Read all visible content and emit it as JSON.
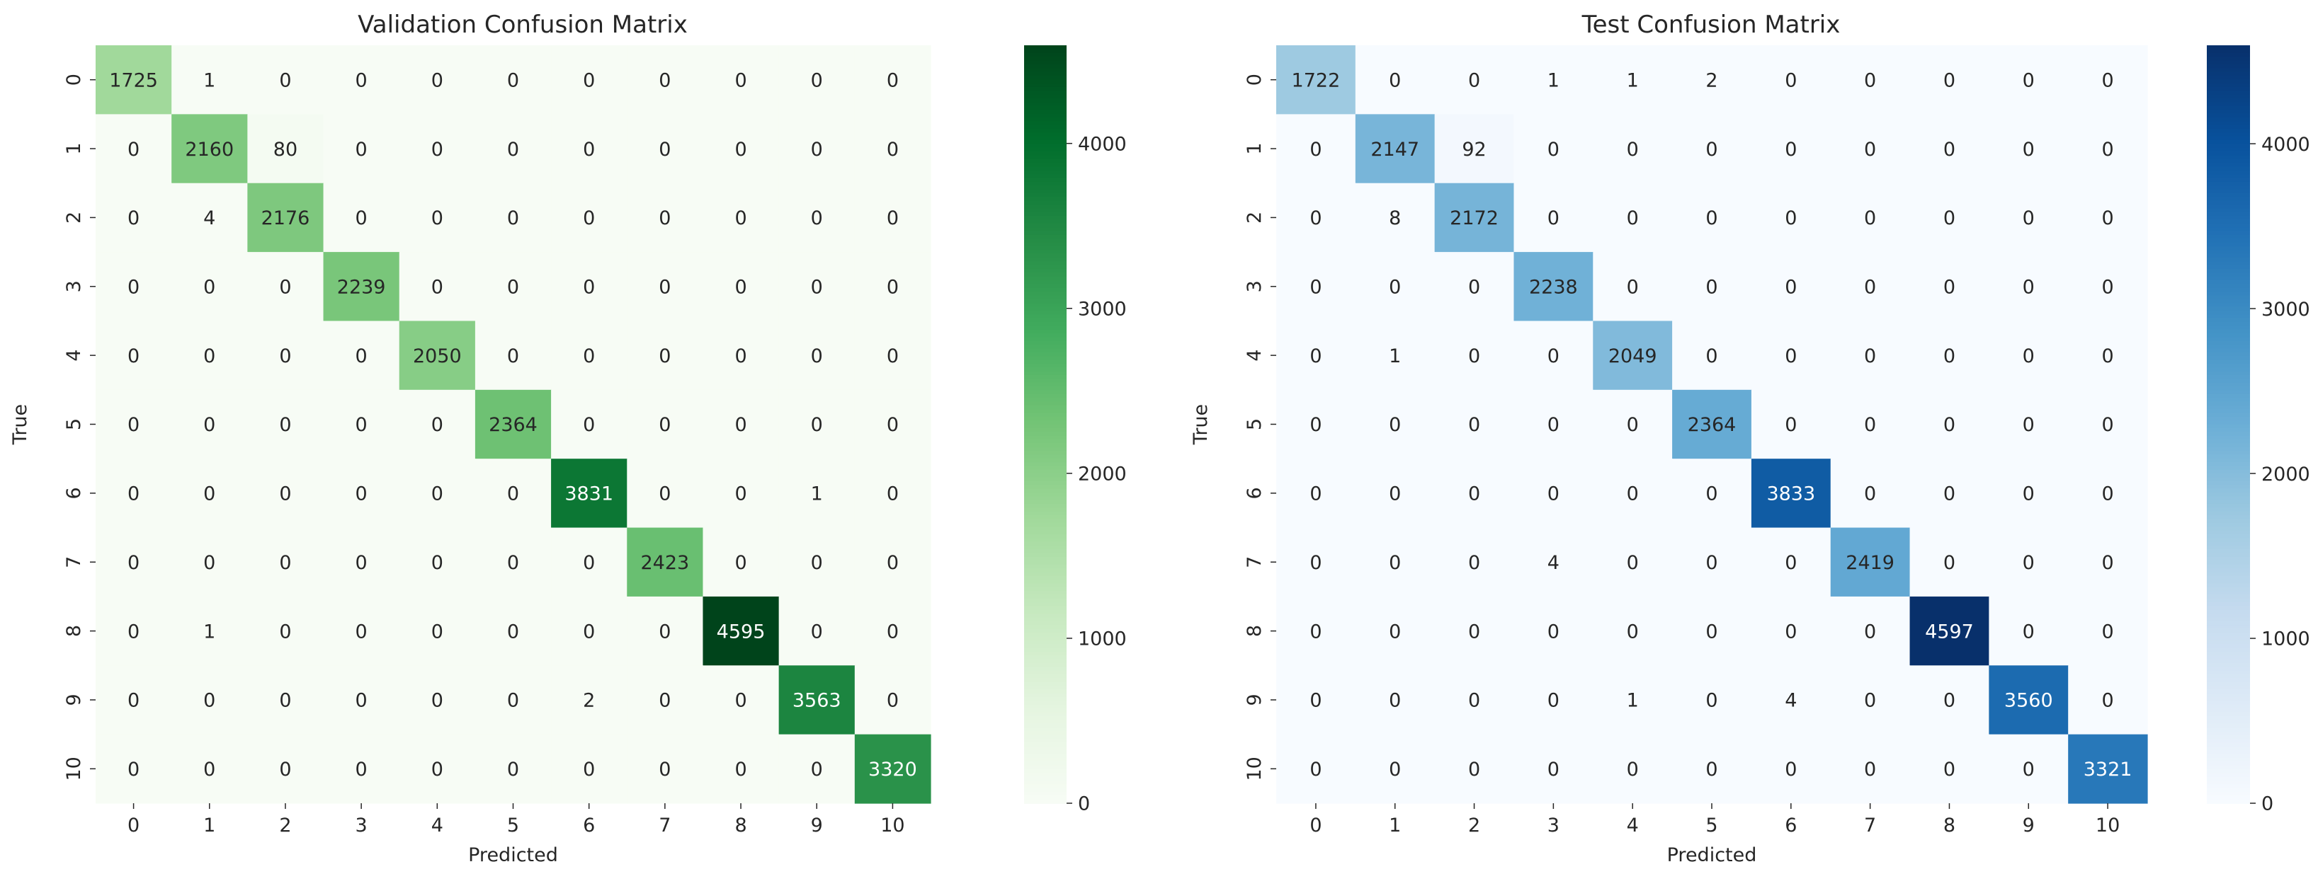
{
  "chart_data": [
    {
      "type": "heatmap",
      "title": "Validation Confusion Matrix",
      "xlabel": "Predicted",
      "ylabel": "True",
      "x_categories": [
        "0",
        "1",
        "2",
        "3",
        "4",
        "5",
        "6",
        "7",
        "8",
        "9",
        "10"
      ],
      "y_categories": [
        "0",
        "1",
        "2",
        "3",
        "4",
        "5",
        "6",
        "7",
        "8",
        "9",
        "10"
      ],
      "values": [
        [
          1725,
          1,
          0,
          0,
          0,
          0,
          0,
          0,
          0,
          0,
          0
        ],
        [
          0,
          2160,
          80,
          0,
          0,
          0,
          0,
          0,
          0,
          0,
          0
        ],
        [
          0,
          4,
          2176,
          0,
          0,
          0,
          0,
          0,
          0,
          0,
          0
        ],
        [
          0,
          0,
          0,
          2239,
          0,
          0,
          0,
          0,
          0,
          0,
          0
        ],
        [
          0,
          0,
          0,
          0,
          2050,
          0,
          0,
          0,
          0,
          0,
          0
        ],
        [
          0,
          0,
          0,
          0,
          0,
          2364,
          0,
          0,
          0,
          0,
          0
        ],
        [
          0,
          0,
          0,
          0,
          0,
          0,
          3831,
          0,
          0,
          1,
          0
        ],
        [
          0,
          0,
          0,
          0,
          0,
          0,
          0,
          2423,
          0,
          0,
          0
        ],
        [
          0,
          1,
          0,
          0,
          0,
          0,
          0,
          0,
          4595,
          0,
          0
        ],
        [
          0,
          0,
          0,
          0,
          0,
          0,
          2,
          0,
          0,
          3563,
          0
        ],
        [
          0,
          0,
          0,
          0,
          0,
          0,
          0,
          0,
          0,
          0,
          3320
        ]
      ],
      "colormap": "Greens",
      "colormap_stops": [
        "#f7fcf5",
        "#e5f5e0",
        "#c7e9c0",
        "#a1d99b",
        "#74c476",
        "#41ab5d",
        "#238b45",
        "#006d2c",
        "#00441b"
      ],
      "zlim": [
        0,
        4595
      ],
      "colorbar_ticks": [
        0,
        1000,
        2000,
        3000,
        4000
      ],
      "colorbar_tick_labels": [
        "0",
        "1000",
        "2000",
        "3000",
        "4000"
      ]
    },
    {
      "type": "heatmap",
      "title": "Test Confusion Matrix",
      "xlabel": "Predicted",
      "ylabel": "True",
      "x_categories": [
        "0",
        "1",
        "2",
        "3",
        "4",
        "5",
        "6",
        "7",
        "8",
        "9",
        "10"
      ],
      "y_categories": [
        "0",
        "1",
        "2",
        "3",
        "4",
        "5",
        "6",
        "7",
        "8",
        "9",
        "10"
      ],
      "values": [
        [
          1722,
          0,
          0,
          1,
          1,
          2,
          0,
          0,
          0,
          0,
          0
        ],
        [
          0,
          2147,
          92,
          0,
          0,
          0,
          0,
          0,
          0,
          0,
          0
        ],
        [
          0,
          8,
          2172,
          0,
          0,
          0,
          0,
          0,
          0,
          0,
          0
        ],
        [
          0,
          0,
          0,
          2238,
          0,
          0,
          0,
          0,
          0,
          0,
          0
        ],
        [
          0,
          1,
          0,
          0,
          2049,
          0,
          0,
          0,
          0,
          0,
          0
        ],
        [
          0,
          0,
          0,
          0,
          0,
          2364,
          0,
          0,
          0,
          0,
          0
        ],
        [
          0,
          0,
          0,
          0,
          0,
          0,
          3833,
          0,
          0,
          0,
          0
        ],
        [
          0,
          0,
          0,
          4,
          0,
          0,
          0,
          2419,
          0,
          0,
          0
        ],
        [
          0,
          0,
          0,
          0,
          0,
          0,
          0,
          0,
          4597,
          0,
          0
        ],
        [
          0,
          0,
          0,
          0,
          1,
          0,
          4,
          0,
          0,
          3560,
          0
        ],
        [
          0,
          0,
          0,
          0,
          0,
          0,
          0,
          0,
          0,
          0,
          3321
        ]
      ],
      "colormap": "Blues",
      "colormap_stops": [
        "#f7fbff",
        "#deebf7",
        "#c6dbef",
        "#9ecae1",
        "#6baed6",
        "#4292c6",
        "#2171b5",
        "#08519c",
        "#08306b"
      ],
      "zlim": [
        0,
        4597
      ],
      "colorbar_ticks": [
        0,
        1000,
        2000,
        3000,
        4000
      ],
      "colorbar_tick_labels": [
        "0",
        "1000",
        "2000",
        "3000",
        "4000"
      ]
    }
  ]
}
